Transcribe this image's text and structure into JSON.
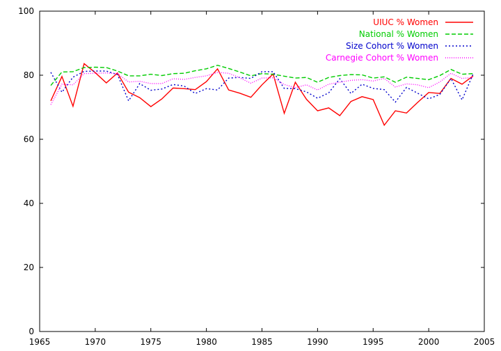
{
  "chart_data": {
    "type": "line",
    "title": "",
    "xlabel": "",
    "ylabel": "",
    "xlim": [
      1965,
      2005
    ],
    "ylim": [
      0,
      100
    ],
    "xticks": [
      1965,
      1970,
      1975,
      1980,
      1985,
      1990,
      1995,
      2000,
      2005
    ],
    "yticks": [
      0,
      20,
      40,
      60,
      80,
      100
    ],
    "grid": false,
    "legend_position": "top-right",
    "x": [
      1966,
      1967,
      1968,
      1969,
      1970,
      1971,
      1972,
      1973,
      1974,
      1975,
      1976,
      1977,
      1978,
      1979,
      1980,
      1981,
      1982,
      1983,
      1984,
      1985,
      1986,
      1987,
      1988,
      1989,
      1990,
      1991,
      1992,
      1993,
      1994,
      1995,
      1996,
      1997,
      1998,
      1999,
      2000,
      2001,
      2002,
      2003,
      2004
    ],
    "series": [
      {
        "name": "UIUC % Women",
        "color": "#ff0000",
        "dash": "solid",
        "values": [
          72.0,
          79.6,
          70.3,
          83.6,
          80.8,
          77.6,
          80.7,
          74.7,
          73.0,
          70.2,
          72.6,
          76.0,
          75.8,
          75.5,
          78.0,
          82.0,
          75.4,
          74.4,
          73.1,
          77.0,
          80.4,
          68.1,
          77.8,
          72.5,
          68.9,
          69.8,
          67.4,
          71.8,
          73.3,
          72.4,
          64.4,
          68.9,
          68.2,
          71.5,
          74.6,
          74.3,
          79.0,
          77.2,
          79.8
        ]
      },
      {
        "name": "National % Women",
        "color": "#00cc00",
        "dash": "dashed",
        "values": [
          76.8,
          81.0,
          81.1,
          82.4,
          82.5,
          82.4,
          81.3,
          79.8,
          79.8,
          80.3,
          79.9,
          80.5,
          80.6,
          81.4,
          82.0,
          83.1,
          82.1,
          81.0,
          79.8,
          80.5,
          80.3,
          79.7,
          79.1,
          79.3,
          77.8,
          79.3,
          79.9,
          80.2,
          80.1,
          79.1,
          79.5,
          77.8,
          79.4,
          79.0,
          78.6,
          79.9,
          81.8,
          80.3,
          80.5
        ]
      },
      {
        "name": "Size Cohort % Women",
        "color": "#0000cc",
        "dash": "dotted",
        "values": [
          80.9,
          74.7,
          79.4,
          81.2,
          81.3,
          81.3,
          80.2,
          72.0,
          77.4,
          75.3,
          75.7,
          77.1,
          76.6,
          74.3,
          75.8,
          75.4,
          79.1,
          79.3,
          79.0,
          81.1,
          81.1,
          75.9,
          75.8,
          74.8,
          72.8,
          74.5,
          78.9,
          74.3,
          77.2,
          75.9,
          75.5,
          71.6,
          76.2,
          74.4,
          72.6,
          74.0,
          79.0,
          72.3,
          80.4
        ]
      },
      {
        "name": "Carnegie Cohort % Women",
        "color": "#ff00ff",
        "dash": "dotted-fine",
        "values": [
          70.8,
          77.2,
          77.0,
          80.5,
          80.6,
          80.7,
          80.5,
          77.9,
          78.1,
          77.4,
          77.4,
          78.9,
          78.7,
          79.3,
          79.8,
          80.9,
          80.6,
          79.2,
          77.5,
          79.1,
          79.2,
          77.1,
          76.1,
          77.0,
          75.4,
          77.2,
          77.8,
          78.4,
          78.6,
          78.2,
          79.0,
          76.3,
          77.3,
          77.0,
          76.1,
          77.9,
          80.6,
          79.0,
          79.3
        ]
      }
    ]
  }
}
